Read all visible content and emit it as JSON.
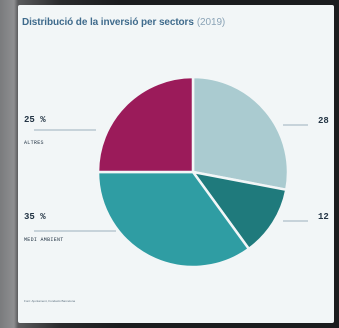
{
  "title": "Distribució de la inversió per sectors",
  "year": "(2019)",
  "source": "Font: Ajuntament, Fundació Barcelona",
  "chart_data": {
    "type": "pie",
    "title": "Distribució de la inversió per sectors (2019)",
    "slices": [
      {
        "label": "28",
        "category": "",
        "value": 28,
        "color": "#aacbd0"
      },
      {
        "label": "12",
        "category": "",
        "value": 12,
        "color": "#1f7a7c"
      },
      {
        "label": "35 %",
        "category": "MEDI AMBIENT",
        "value": 35,
        "color": "#2f9da3"
      },
      {
        "label": "25 %",
        "category": "ALTRES",
        "value": 25,
        "color": "#9b1b5a"
      }
    ]
  }
}
